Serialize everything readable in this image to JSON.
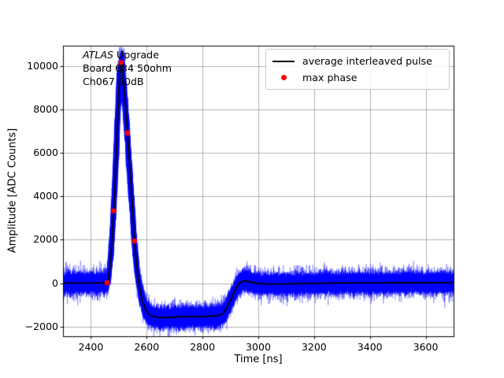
{
  "figure": {
    "annotation": {
      "line1_italic": "ATLAS",
      "line1_rest": " Upgrade",
      "line2": "Board 634 50ohm",
      "line3": "Ch067 50dB"
    }
  },
  "chart_data": {
    "type": "line",
    "title": "",
    "xlabel": "Time [ns]",
    "ylabel": "Amplitude [ADC Counts]",
    "xlim": [
      2300,
      3700
    ],
    "ylim": [
      -2450,
      10950
    ],
    "xticks": [
      2400,
      2600,
      2800,
      3000,
      3200,
      3400,
      3600
    ],
    "yticks": [
      -2000,
      0,
      2000,
      4000,
      6000,
      8000,
      10000
    ],
    "grid": true,
    "legend_position": "upper right",
    "legend": [
      {
        "label": "average interleaved pulse",
        "marker": "line",
        "color": "#000000"
      },
      {
        "label": "max phase",
        "marker": "dot",
        "color": "#ff0000"
      }
    ],
    "colors": {
      "noise_band": "#0000ff",
      "average_line": "#000000",
      "max_phase": "#ff0000",
      "grid": "#b0b0b0",
      "spine": "#000000"
    },
    "series": [
      {
        "name": "average interleaved pulse",
        "type": "line",
        "points": [
          [
            2300,
            10
          ],
          [
            2360,
            8
          ],
          [
            2410,
            5
          ],
          [
            2440,
            5
          ],
          [
            2455,
            15
          ],
          [
            2462,
            120
          ],
          [
            2468,
            700
          ],
          [
            2475,
            1800
          ],
          [
            2482,
            3330
          ],
          [
            2490,
            5600
          ],
          [
            2497,
            7900
          ],
          [
            2503,
            9500
          ],
          [
            2506,
            10020
          ],
          [
            2508,
            10170
          ],
          [
            2512,
            10040
          ],
          [
            2518,
            9200
          ],
          [
            2524,
            8200
          ],
          [
            2531,
            6930
          ],
          [
            2538,
            5600
          ],
          [
            2545,
            4300
          ],
          [
            2551,
            3100
          ],
          [
            2556,
            1940
          ],
          [
            2562,
            1050
          ],
          [
            2568,
            350
          ],
          [
            2574,
            -150
          ],
          [
            2580,
            -550
          ],
          [
            2588,
            -950
          ],
          [
            2597,
            -1250
          ],
          [
            2607,
            -1430
          ],
          [
            2620,
            -1530
          ],
          [
            2640,
            -1570
          ],
          [
            2660,
            -1590
          ],
          [
            2690,
            -1570
          ],
          [
            2730,
            -1550
          ],
          [
            2780,
            -1540
          ],
          [
            2830,
            -1520
          ],
          [
            2862,
            -1480
          ],
          [
            2875,
            -1380
          ],
          [
            2887,
            -1150
          ],
          [
            2898,
            -850
          ],
          [
            2910,
            -500
          ],
          [
            2922,
            -200
          ],
          [
            2933,
            0
          ],
          [
            2944,
            90
          ],
          [
            2955,
            115
          ],
          [
            2968,
            60
          ],
          [
            2985,
            10
          ],
          [
            3010,
            -30
          ],
          [
            3060,
            -40
          ],
          [
            3120,
            -30
          ],
          [
            3200,
            -10
          ],
          [
            3300,
            10
          ],
          [
            3400,
            15
          ],
          [
            3500,
            20
          ],
          [
            3600,
            20
          ],
          [
            3700,
            25
          ]
        ]
      },
      {
        "name": "max phase",
        "type": "scatter",
        "points": [
          [
            2458,
            20
          ],
          [
            2482,
            3330
          ],
          [
            2508,
            10170
          ],
          [
            2531,
            6930
          ],
          [
            2556,
            1940
          ]
        ]
      }
    ],
    "noise": {
      "core_traces": 70,
      "core_sigma": 165,
      "time_jitter_sigma": 3.5,
      "scale_jitter": 0.02,
      "halo_traces": 26,
      "halo_sigma": 300,
      "halo_alpha": 0.3
    }
  }
}
